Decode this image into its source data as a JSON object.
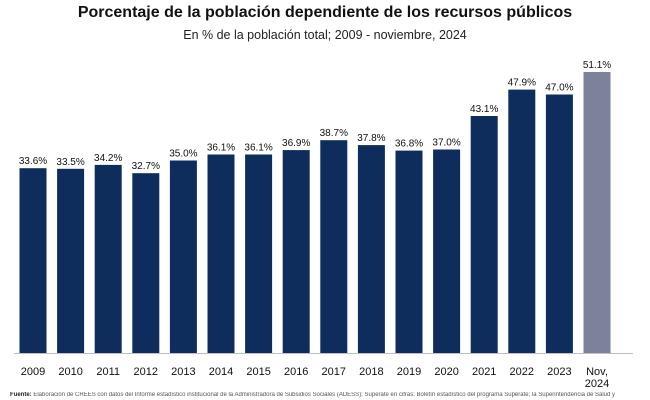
{
  "title": "Porcentaje de la población dependiente de los recursos públicos",
  "subtitle": "En % de la población total; 2009 - noviembre, 2024",
  "source_label": "Fuente:",
  "source_text": "Elaboración de CREES con datos del Informe estadístico institucional de la Administradora de Subsidios Sociales (ADESS); Superate en cifras: Boletín estadístico del programa Supérate; la Superintendencia de Salud y",
  "colors": {
    "bar": "#0e2d5c",
    "highlight": "#7b8299"
  },
  "chart_data": {
    "type": "bar",
    "title": "Porcentaje de la población dependiente de los recursos públicos",
    "subtitle": "En % de la población total; 2009 - noviembre, 2024",
    "categories": [
      "2009",
      "2010",
      "2011",
      "2012",
      "2013",
      "2014",
      "2015",
      "2016",
      "2017",
      "2018",
      "2019",
      "2020",
      "2021",
      "2022",
      "2023",
      "Nov, 2024"
    ],
    "values": [
      33.6,
      33.5,
      34.2,
      32.7,
      35.0,
      36.1,
      36.1,
      36.9,
      38.7,
      37.8,
      36.8,
      37.0,
      43.1,
      47.9,
      47.0,
      51.1
    ],
    "data_labels": [
      "33.6%",
      "33.5%",
      "34.2%",
      "32.7%",
      "35.0%",
      "36.1%",
      "36.1%",
      "36.9%",
      "38.7%",
      "37.8%",
      "36.8%",
      "37.0%",
      "43.1%",
      "47.9%",
      "47.0%",
      "51.1%"
    ],
    "highlight_index": 15,
    "xlabel": "",
    "ylabel": "",
    "ylim": [
      0,
      51.1
    ],
    "grid": false,
    "legend": "none"
  }
}
